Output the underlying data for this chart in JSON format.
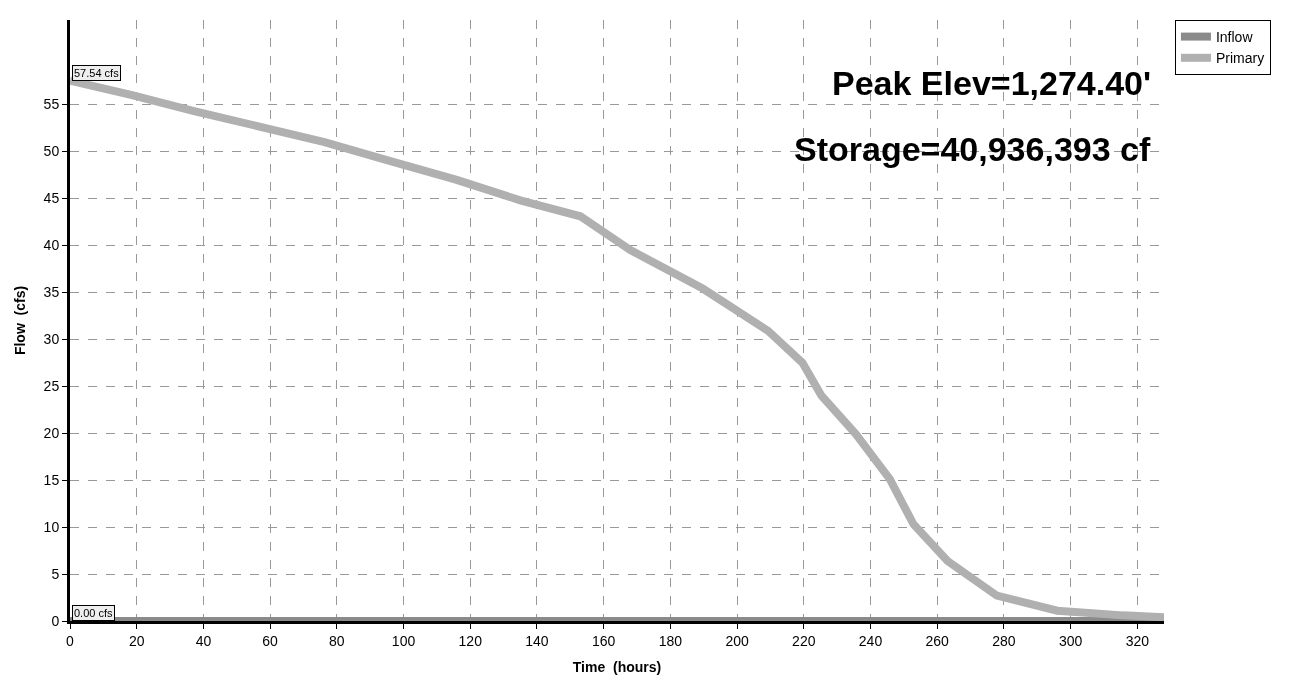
{
  "chart_data": {
    "type": "line",
    "xlabel": "Time  (hours)",
    "ylabel": "Flow  (cfs)",
    "series": [
      {
        "name": "Inflow",
        "color": "#8a8a8a",
        "x": [
          0,
          328
        ],
        "values": [
          0,
          0
        ]
      },
      {
        "name": "Primary",
        "color": "#b0b0b0",
        "x": [
          0,
          18.6,
          37.2,
          57.4,
          76.3,
          95.8,
          115.7,
          135,
          153,
          168,
          189.7,
          209.3,
          219.6,
          225.3,
          235.6,
          245.8,
          252.9,
          263.1,
          277.9,
          296,
          315.7,
          328
        ],
        "values": [
          57.54,
          56.0,
          54.3,
          52.6,
          51.0,
          49.0,
          47.0,
          44.8,
          43.1,
          39.5,
          35.4,
          30.9,
          27.5,
          24.0,
          19.9,
          15.1,
          10.3,
          6.4,
          2.7,
          1.1,
          0.6,
          0.4
        ]
      }
    ],
    "annotations": [
      "Peak Elev=1,274.40'",
      "Storage=40,936,393 cf",
      {
        "text": "57.54 cfs",
        "x": 0,
        "y": 57.54
      },
      {
        "text": "0.00 cfs",
        "x": 0,
        "y": 0
      }
    ],
    "xlim": [
      0,
      328
    ],
    "xticks": [
      0,
      20,
      40,
      60,
      80,
      100,
      120,
      140,
      160,
      180,
      200,
      220,
      240,
      260,
      280,
      300,
      320
    ],
    "ylim": [
      0,
      64
    ],
    "yticks": [
      0,
      5,
      10,
      15,
      20,
      25,
      30,
      35,
      40,
      45,
      50,
      55
    ],
    "grid": true,
    "legend": "top right",
    "line_style": "solid",
    "marker": "none"
  }
}
